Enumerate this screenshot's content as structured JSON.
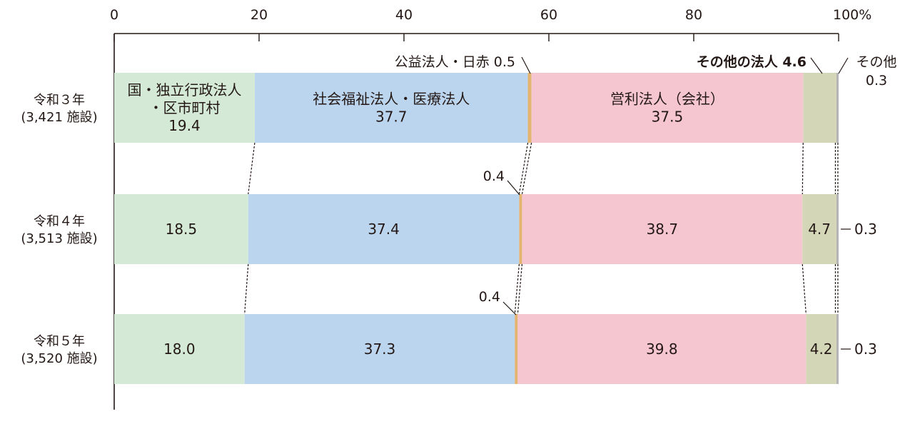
{
  "chart_data": {
    "type": "bar",
    "orientation": "horizontal",
    "stacked": true,
    "xlim": [
      0,
      100
    ],
    "x_ticks": [
      "0",
      "20",
      "40",
      "60",
      "80",
      "100%"
    ],
    "categories": [
      [
        "令和３年",
        "(3,421 施設)"
      ],
      [
        "令和４年",
        "(3,513 施設)"
      ],
      [
        "令和５年",
        "(3,520 施設)"
      ]
    ],
    "series": [
      {
        "name": "国・独立行政法人・区市町村",
        "color": "#d5ead6",
        "values": [
          19.4,
          18.5,
          18.0
        ],
        "labels": [
          [
            "国・独立行政法人",
            "・区市町村",
            "19.4"
          ],
          [
            "18.5"
          ],
          [
            "18.0"
          ]
        ]
      },
      {
        "name": "社会福祉法人・医療法人",
        "color": "#bcd5ee",
        "values": [
          37.7,
          37.4,
          37.3
        ],
        "labels": [
          [
            "社会福祉法人・医療法人",
            "37.7"
          ],
          [
            "37.4"
          ],
          [
            "37.3"
          ]
        ]
      },
      {
        "name": "公益法人・日赤",
        "color": "#e2b46f",
        "values": [
          0.5,
          0.4,
          0.4
        ],
        "labels": [
          [
            "公益法人・日赤 0.5"
          ],
          [
            "0.4"
          ],
          [
            "0.4"
          ]
        ]
      },
      {
        "name": "営利法人（会社）",
        "color": "#f5c6cf",
        "values": [
          37.5,
          38.7,
          39.8
        ],
        "labels": [
          [
            "営利法人（会社）",
            "37.5"
          ],
          [
            "38.7"
          ],
          [
            "39.8"
          ]
        ]
      },
      {
        "name": "その他の法人",
        "color": "#d4d7b7",
        "values": [
          4.6,
          4.7,
          4.2
        ],
        "labels": [
          [
            "その他の法人 4.6"
          ],
          [
            "4.7"
          ],
          [
            "4.2"
          ]
        ]
      },
      {
        "name": "その他",
        "color": "#b5b5b5",
        "values": [
          0.3,
          0.3,
          0.3
        ],
        "labels": [
          [
            "その他",
            "0.3"
          ],
          [
            "0.3"
          ],
          [
            "0.3"
          ]
        ]
      }
    ]
  }
}
